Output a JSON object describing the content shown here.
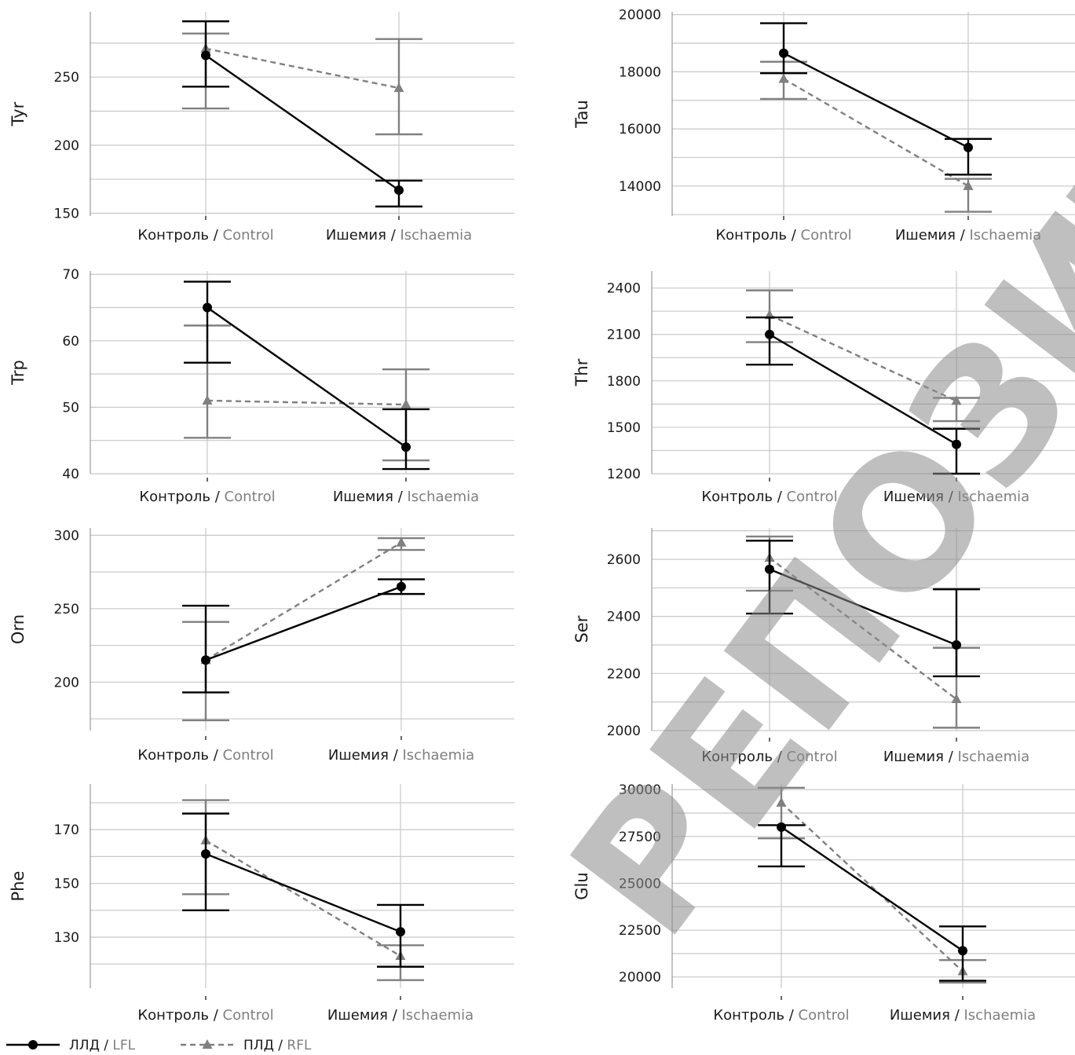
{
  "watermark": "РЕПОЗИТОРИЙ ГРГМУ",
  "colors": {
    "lfl": "#000000",
    "rfl": "#808080",
    "grid": "#c8c8c8",
    "axis": "#999999"
  },
  "legend": [
    {
      "ru": "ЛЛД",
      "sep": " / ",
      "en": "LFL",
      "series": "lfl",
      "style": "solid",
      "marker": "circle"
    },
    {
      "ru": "ПЛД",
      "sep": " / ",
      "en": "RFL",
      "series": "rfl",
      "style": "dashed",
      "marker": "triangle"
    }
  ],
  "chart_data": [
    {
      "type": "line",
      "ylabel": "Tyr",
      "ylim": [
        148,
        298
      ],
      "yticks": [
        150,
        200,
        250
      ],
      "categories": [
        {
          "ru": "Контроль",
          "sep": " / ",
          "en": "Control"
        },
        {
          "ru": "Ишемия",
          "sep": " / ",
          "en": "Ischaemia"
        }
      ],
      "series": [
        {
          "key": "lfl",
          "values": [
            266,
            167
          ],
          "errors": [
            [
              243,
              291
            ],
            [
              155,
              174
            ]
          ]
        },
        {
          "key": "rfl",
          "values": [
            271,
            242
          ],
          "errors": [
            [
              227,
              282
            ],
            [
              208,
              278
            ]
          ]
        }
      ]
    },
    {
      "type": "line",
      "ylabel": "Tau",
      "ylim": [
        12950,
        20100
      ],
      "yticks": [
        14000,
        16000,
        18000,
        20000
      ],
      "categories": [
        {
          "ru": "Контроль",
          "sep": " / ",
          "en": "Control"
        },
        {
          "ru": "Ишемия",
          "sep": " / ",
          "en": "Ischaemia"
        }
      ],
      "series": [
        {
          "key": "lfl",
          "values": [
            18650,
            15350
          ],
          "errors": [
            [
              17950,
              19700
            ],
            [
              14400,
              15650
            ]
          ]
        },
        {
          "key": "rfl",
          "values": [
            17750,
            14000
          ],
          "errors": [
            [
              17050,
              18350
            ],
            [
              13100,
              14250
            ]
          ]
        }
      ]
    },
    {
      "type": "line",
      "ylabel": "Trp",
      "ylim": [
        40,
        70.5
      ],
      "yticks": [
        40,
        50,
        60,
        70
      ],
      "categories": [
        {
          "ru": "Контроль",
          "sep": " / ",
          "en": "Control"
        },
        {
          "ru": "Ишемия",
          "sep": " / ",
          "en": "Ischaemia"
        }
      ],
      "series": [
        {
          "key": "lfl",
          "values": [
            65,
            44
          ],
          "errors": [
            [
              56.7,
              68.9
            ],
            [
              40.7,
              49.7
            ]
          ]
        },
        {
          "key": "rfl",
          "values": [
            51,
            50.4
          ],
          "errors": [
            [
              45.4,
              62.3
            ],
            [
              42.0,
              55.7
            ]
          ]
        }
      ]
    },
    {
      "type": "line",
      "ylabel": "Thr",
      "ylim": [
        1200,
        2510
      ],
      "yticks": [
        1200,
        1500,
        1800,
        2100,
        2400
      ],
      "categories": [
        {
          "ru": "Контроль",
          "sep": " / ",
          "en": "Control"
        },
        {
          "ru": "Ишемия",
          "sep": " / ",
          "en": "Ischaemia"
        }
      ],
      "series": [
        {
          "key": "lfl",
          "values": [
            2100,
            1390
          ],
          "errors": [
            [
              1905,
              2210
            ],
            [
              1200,
              1490
            ]
          ]
        },
        {
          "key": "rfl",
          "values": [
            2225,
            1670
          ],
          "errors": [
            [
              2050,
              2385
            ],
            [
              1540,
              1690
            ]
          ]
        }
      ]
    },
    {
      "type": "line",
      "ylabel": "Orn",
      "ylim": [
        167,
        305
      ],
      "yticks": [
        200,
        250,
        300
      ],
      "categories": [
        {
          "ru": "Контроль",
          "sep": " / ",
          "en": "Control"
        },
        {
          "ru": "Ишемия",
          "sep": " / ",
          "en": "Ischaemia"
        }
      ],
      "series": [
        {
          "key": "lfl",
          "values": [
            215,
            265
          ],
          "errors": [
            [
              193,
              252
            ],
            [
              260,
              270
            ]
          ]
        },
        {
          "key": "rfl",
          "values": [
            215,
            295
          ],
          "errors": [
            [
              174,
              241
            ],
            [
              290,
              298
            ]
          ]
        }
      ]
    },
    {
      "type": "line",
      "ylabel": "Ser",
      "ylim": [
        2000,
        2710
      ],
      "yticks": [
        2000,
        2200,
        2400,
        2600
      ],
      "categories": [
        {
          "ru": "Контроль",
          "sep": " / ",
          "en": "Control"
        },
        {
          "ru": "Ишемия",
          "sep": " / ",
          "en": "Ischaemia"
        }
      ],
      "series": [
        {
          "key": "lfl",
          "values": [
            2565,
            2300
          ],
          "errors": [
            [
              2410,
              2665
            ],
            [
              2190,
              2495
            ]
          ]
        },
        {
          "key": "rfl",
          "values": [
            2605,
            2110
          ],
          "errors": [
            [
              2490,
              2680
            ],
            [
              2010,
              2290
            ]
          ]
        }
      ]
    },
    {
      "type": "line",
      "ylabel": "Phe",
      "ylim": [
        111,
        187
      ],
      "yticks": [
        130,
        150,
        170
      ],
      "categories": [
        {
          "ru": "Контроль",
          "sep": " / ",
          "en": "Control"
        },
        {
          "ru": "Ишемия",
          "sep": " / ",
          "en": "Ischaemia"
        }
      ],
      "series": [
        {
          "key": "lfl",
          "values": [
            161,
            132
          ],
          "errors": [
            [
              140,
              176
            ],
            [
              119,
              142
            ]
          ]
        },
        {
          "key": "rfl",
          "values": [
            166,
            123
          ],
          "errors": [
            [
              146,
              181
            ],
            [
              114,
              127
            ]
          ]
        }
      ]
    },
    {
      "type": "line",
      "ylabel": "Glu",
      "ylim": [
        19400,
        30300
      ],
      "yticks": [
        20000,
        22500,
        25000,
        27500,
        30000
      ],
      "categories": [
        {
          "ru": "Контроль",
          "sep": " / ",
          "en": "Control"
        },
        {
          "ru": "Ишемия",
          "sep": " / ",
          "en": "Ischaemia"
        }
      ],
      "series": [
        {
          "key": "lfl",
          "values": [
            28000,
            21400
          ],
          "errors": [
            [
              25900,
              28100
            ],
            [
              19800,
              22700
            ]
          ]
        },
        {
          "key": "rfl",
          "values": [
            29300,
            20300
          ],
          "errors": [
            [
              27400,
              30100
            ],
            [
              19700,
              20900
            ]
          ]
        }
      ]
    }
  ]
}
